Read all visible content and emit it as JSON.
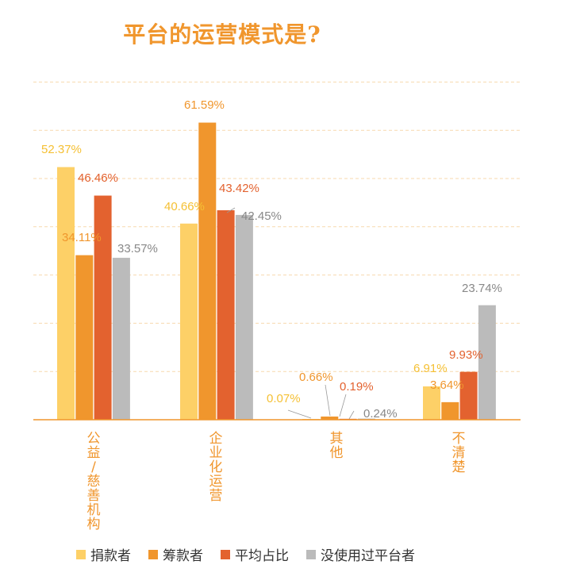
{
  "title": "平台的运营模式是?",
  "chart_data": {
    "type": "bar",
    "title": "平台的运营模式是?",
    "categories": [
      "公益/慈善机构",
      "企业化运营",
      "其他",
      "不清楚"
    ],
    "series": [
      {
        "name": "捐款者",
        "color": "#FDD067",
        "label_color": "#F5C034",
        "values": [
          52.37,
          40.66,
          0.07,
          6.91
        ]
      },
      {
        "name": "筹款者",
        "color": "#F0962D",
        "label_color": "#F0962D",
        "values": [
          34.11,
          61.59,
          0.66,
          3.64
        ]
      },
      {
        "name": "平均占比",
        "color": "#E3622F",
        "label_color": "#E3622F",
        "values": [
          46.46,
          43.42,
          0.19,
          9.93
        ]
      },
      {
        "name": "没使用过平台者",
        "color": "#BBBBBB",
        "label_color": "#888888",
        "values": [
          33.57,
          42.45,
          0.24,
          23.74
        ]
      }
    ],
    "data_labels": [
      [
        "52.37%",
        "34.11%",
        "46.46%",
        "33.57%"
      ],
      [
        "40.66%",
        "61.59%",
        "43.42%",
        "42.45%"
      ],
      [
        "0.07%",
        "0.66%",
        "0.19%",
        "0.24%"
      ],
      [
        "6.91%",
        "3.64%",
        "9.93%",
        "23.74%"
      ]
    ],
    "ylim": [
      0,
      70
    ],
    "grid": true,
    "legend_position": "bottom"
  }
}
